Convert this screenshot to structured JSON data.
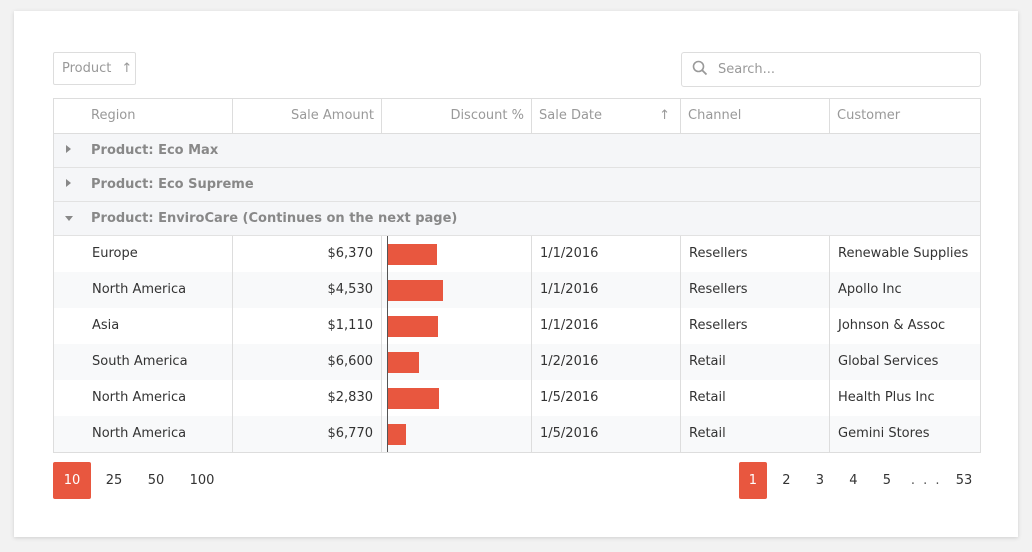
{
  "toolbar": {
    "group_chip_label": "Product",
    "group_chip_sort": "↑",
    "search_placeholder": "Search..."
  },
  "columns": [
    {
      "label": "Region"
    },
    {
      "label": "Sale Amount"
    },
    {
      "label": "Discount %"
    },
    {
      "label": "Sale Date",
      "sort": "↑"
    },
    {
      "label": "Channel"
    },
    {
      "label": "Customer"
    }
  ],
  "groups": [
    {
      "label": "Product: Eco Max",
      "expanded": false
    },
    {
      "label": "Product: Eco Supreme",
      "expanded": false
    },
    {
      "label": "Product: EnviroCare (Continues on the next page)",
      "expanded": true
    }
  ],
  "rows": [
    {
      "region": "Europe",
      "amount": "$6,370",
      "discount": 0.54,
      "date": "1/1/2016",
      "channel": "Resellers",
      "customer": "Renewable Supplies"
    },
    {
      "region": "North America",
      "amount": "$4,530",
      "discount": 0.61,
      "date": "1/1/2016",
      "channel": "Resellers",
      "customer": "Apollo Inc"
    },
    {
      "region": "Asia",
      "amount": "$1,110",
      "discount": 0.55,
      "date": "1/1/2016",
      "channel": "Resellers",
      "customer": "Johnson & Assoc"
    },
    {
      "region": "South America",
      "amount": "$6,600",
      "discount": 0.34,
      "date": "1/2/2016",
      "channel": "Retail",
      "customer": "Global Services"
    },
    {
      "region": "North America",
      "amount": "$2,830",
      "discount": 0.57,
      "date": "1/5/2016",
      "channel": "Retail",
      "customer": "Health Plus Inc"
    },
    {
      "region": "North America",
      "amount": "$6,770",
      "discount": 0.2,
      "date": "1/5/2016",
      "channel": "Retail",
      "customer": "Gemini Stores"
    }
  ],
  "pager": {
    "page_sizes": [
      "10",
      "25",
      "50",
      "100"
    ],
    "active_page_size": "10",
    "pages": [
      "1",
      "2",
      "3",
      "4",
      "5"
    ],
    "ellipsis": ". . .",
    "last_page": "53",
    "active_page": "1"
  },
  "colors": {
    "accent": "#e8573f"
  }
}
